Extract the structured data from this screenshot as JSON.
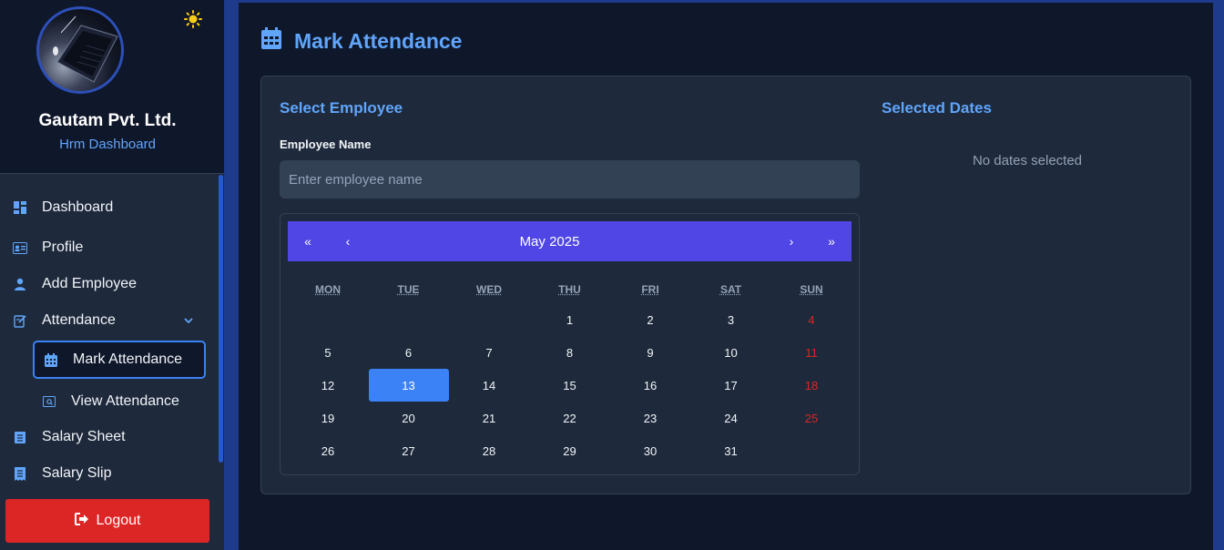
{
  "sidebar": {
    "company_name": "Gautam Pvt. Ltd.",
    "subtitle": "Hrm Dashboard",
    "items": [
      {
        "label": "Dashboard",
        "icon": "dashboard-icon"
      },
      {
        "label": "Profile",
        "icon": "id-card-icon"
      },
      {
        "label": "Add Employee",
        "icon": "user-icon"
      },
      {
        "label": "Attendance",
        "icon": "attendance-icon",
        "expanded": true
      }
    ],
    "subitems": [
      {
        "label": "Mark Attendance",
        "icon": "calendar-icon",
        "active": true
      },
      {
        "label": "View Attendance",
        "icon": "view-icon",
        "active": false
      }
    ],
    "items_after": [
      {
        "label": "Salary Sheet",
        "icon": "sheet-icon"
      },
      {
        "label": "Salary Slip",
        "icon": "receipt-icon"
      }
    ],
    "logout_label": "Logout"
  },
  "page": {
    "title": "Mark Attendance",
    "title_icon": "calendar-icon"
  },
  "employee": {
    "section_title": "Select Employee",
    "field_label": "Employee Name",
    "input_placeholder": "Enter employee name",
    "input_value": ""
  },
  "selected_dates": {
    "section_title": "Selected Dates",
    "empty_text": "No dates selected"
  },
  "calendar": {
    "month_label": "May 2025",
    "nav": {
      "prev_year": "«",
      "prev_month": "‹",
      "next_month": "›",
      "next_year": "»"
    },
    "weekdays": [
      "MON",
      "TUE",
      "WED",
      "THU",
      "FRI",
      "SAT",
      "SUN"
    ],
    "first_weekday_index": 3,
    "days_in_month": 31,
    "selected_day": 13
  },
  "colors": {
    "accent": "#60a5fa",
    "nav_bar": "#4f46e5",
    "selected_day": "#3b82f6",
    "weekend": "#dc2626",
    "logout": "#dc2626"
  }
}
